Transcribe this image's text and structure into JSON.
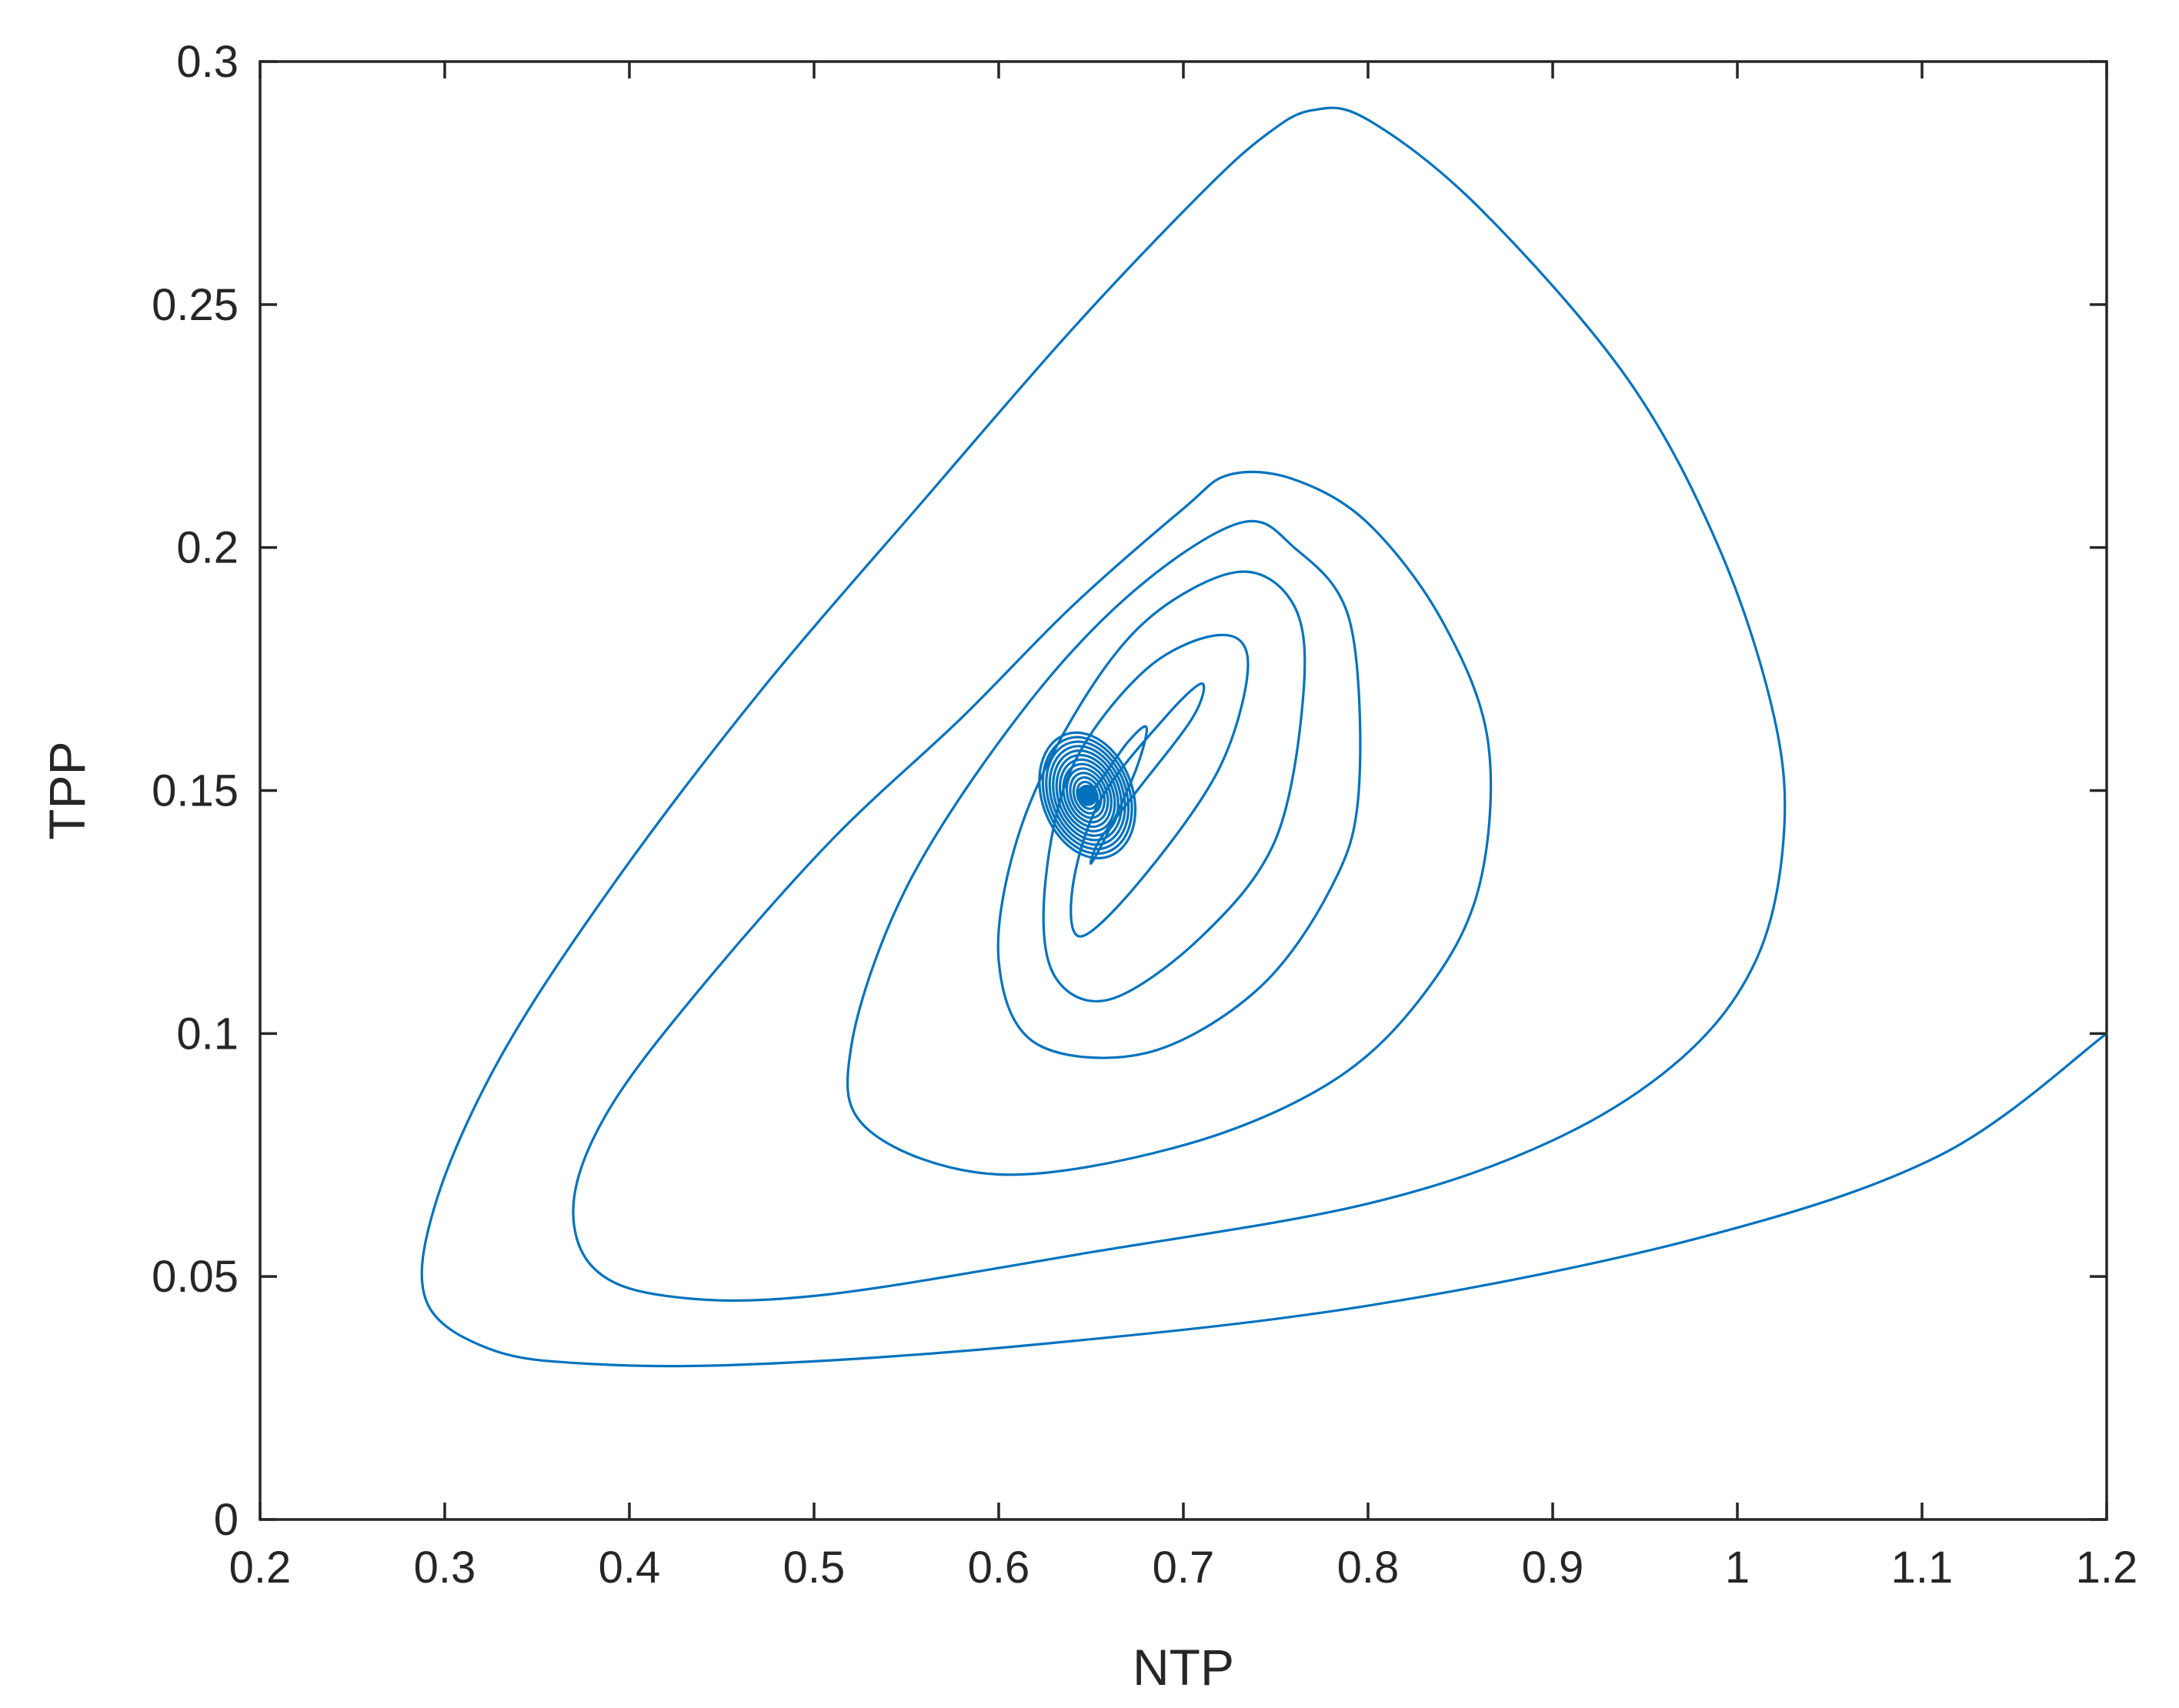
{
  "chart_data": {
    "type": "line",
    "title": "",
    "xlabel": "NTP",
    "ylabel": "TPP",
    "xlim": [
      0.2,
      1.2
    ],
    "ylim": [
      0,
      0.3
    ],
    "xticks": [
      "0.2",
      "0.3",
      "0.4",
      "0.5",
      "0.6",
      "0.7",
      "0.8",
      "0.9",
      "1",
      "1.1",
      "1.2"
    ],
    "yticks": [
      "0",
      "0.05",
      "0.1",
      "0.15",
      "0.2",
      "0.25",
      "0.3"
    ],
    "grid": false,
    "legend": "none",
    "box": true,
    "series": [
      {
        "color": "#0072BD",
        "description": "phase trajectory spiralling inward from (1.2, 0.1) to equilibrium near (0.65, 0.15)",
        "x": [
          1.2,
          1.11,
          0.98,
          0.8,
          0.62,
          0.47,
          0.38,
          0.325,
          0.29,
          0.295,
          0.33,
          0.39,
          0.47,
          0.56,
          0.64,
          0.71,
          0.745,
          0.77,
          0.8,
          0.86,
          0.94,
          0.99,
          1.02,
          1.025,
          1.01,
          0.97,
          0.9,
          0.8,
          0.65,
          0.5,
          0.42,
          0.38,
          0.37,
          0.39,
          0.44,
          0.51,
          0.58,
          0.64,
          0.7,
          0.725,
          0.76,
          0.8,
          0.84,
          0.865,
          0.86,
          0.83,
          0.78,
          0.7,
          0.6,
          0.53,
          0.52,
          0.55,
          0.61,
          0.67,
          0.73,
          0.76,
          0.79,
          0.795,
          0.78,
          0.74,
          0.68,
          0.62,
          0.6,
          0.61,
          0.64,
          0.68,
          0.73,
          0.76,
          0.765,
          0.75,
          0.71,
          0.66,
          0.63,
          0.625,
          0.64,
          0.68,
          0.72,
          0.735,
          0.72,
          0.68,
          0.645,
          0.64,
          0.655,
          0.69,
          0.71,
          0.705,
          0.675,
          0.655,
          0.65,
          0.66,
          0.675,
          0.68,
          0.67,
          0.655,
          0.648
        ],
        "y": [
          0.1,
          0.075,
          0.058,
          0.044,
          0.036,
          0.032,
          0.032,
          0.035,
          0.045,
          0.065,
          0.095,
          0.13,
          0.17,
          0.21,
          0.245,
          0.273,
          0.285,
          0.29,
          0.288,
          0.27,
          0.235,
          0.2,
          0.165,
          0.14,
          0.115,
          0.095,
          0.078,
          0.065,
          0.055,
          0.046,
          0.046,
          0.052,
          0.066,
          0.085,
          0.11,
          0.14,
          0.165,
          0.188,
          0.208,
          0.215,
          0.214,
          0.205,
          0.185,
          0.16,
          0.13,
          0.108,
          0.09,
          0.077,
          0.071,
          0.08,
          0.097,
          0.13,
          0.165,
          0.19,
          0.205,
          0.2,
          0.185,
          0.15,
          0.13,
          0.109,
          0.096,
          0.098,
          0.115,
          0.14,
          0.165,
          0.185,
          0.195,
          0.188,
          0.17,
          0.14,
          0.12,
          0.107,
          0.112,
          0.13,
          0.155,
          0.175,
          0.182,
          0.176,
          0.155,
          0.133,
          0.12,
          0.13,
          0.148,
          0.165,
          0.172,
          0.165,
          0.15,
          0.14,
          0.135,
          0.142,
          0.155,
          0.163,
          0.16,
          0.152,
          0.149
        ]
      }
    ]
  }
}
